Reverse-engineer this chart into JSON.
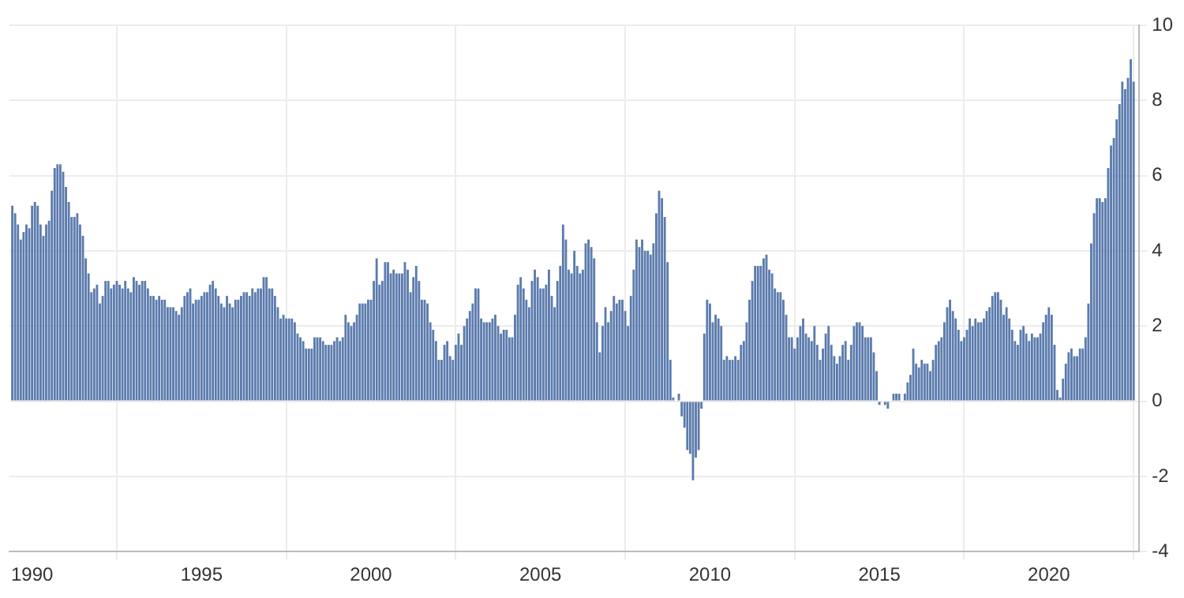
{
  "chart_data": {
    "type": "bar",
    "color": "#5b7bad",
    "grid": true,
    "legend": false,
    "ylim": [
      -4,
      10
    ],
    "yticks": [
      -4,
      -2,
      0,
      2,
      4,
      6,
      8,
      10
    ],
    "xlim": [
      "1989-05",
      "2022-09"
    ],
    "xticks": [
      "1990",
      "1995",
      "2000",
      "2005",
      "2010",
      "2015",
      "2020"
    ],
    "x": [
      "1989-06",
      "1989-07",
      "1989-08",
      "1989-09",
      "1989-10",
      "1989-11",
      "1989-12",
      "1990-01",
      "1990-02",
      "1990-03",
      "1990-04",
      "1990-05",
      "1990-06",
      "1990-07",
      "1990-08",
      "1990-09",
      "1990-10",
      "1990-11",
      "1990-12",
      "1991-01",
      "1991-02",
      "1991-03",
      "1991-04",
      "1991-05",
      "1991-06",
      "1991-07",
      "1991-08",
      "1991-09",
      "1991-10",
      "1991-11",
      "1991-12",
      "1992-01",
      "1992-02",
      "1992-03",
      "1992-04",
      "1992-05",
      "1992-06",
      "1992-07",
      "1992-08",
      "1992-09",
      "1992-10",
      "1992-11",
      "1992-12",
      "1993-01",
      "1993-02",
      "1993-03",
      "1993-04",
      "1993-05",
      "1993-06",
      "1993-07",
      "1993-08",
      "1993-09",
      "1993-10",
      "1993-11",
      "1993-12",
      "1994-01",
      "1994-02",
      "1994-03",
      "1994-04",
      "1994-05",
      "1994-06",
      "1994-07",
      "1994-08",
      "1994-09",
      "1994-10",
      "1994-11",
      "1994-12",
      "1995-01",
      "1995-02",
      "1995-03",
      "1995-04",
      "1995-05",
      "1995-06",
      "1995-07",
      "1995-08",
      "1995-09",
      "1995-10",
      "1995-11",
      "1995-12",
      "1996-01",
      "1996-02",
      "1996-03",
      "1996-04",
      "1996-05",
      "1996-06",
      "1996-07",
      "1996-08",
      "1996-09",
      "1996-10",
      "1996-11",
      "1996-12",
      "1997-01",
      "1997-02",
      "1997-03",
      "1997-04",
      "1997-05",
      "1997-06",
      "1997-07",
      "1997-08",
      "1997-09",
      "1997-10",
      "1997-11",
      "1997-12",
      "1998-01",
      "1998-02",
      "1998-03",
      "1998-04",
      "1998-05",
      "1998-06",
      "1998-07",
      "1998-08",
      "1998-09",
      "1998-10",
      "1998-11",
      "1998-12",
      "1999-01",
      "1999-02",
      "1999-03",
      "1999-04",
      "1999-05",
      "1999-06",
      "1999-07",
      "1999-08",
      "1999-09",
      "1999-10",
      "1999-11",
      "1999-12",
      "2000-01",
      "2000-02",
      "2000-03",
      "2000-04",
      "2000-05",
      "2000-06",
      "2000-07",
      "2000-08",
      "2000-09",
      "2000-10",
      "2000-11",
      "2000-12",
      "2001-01",
      "2001-02",
      "2001-03",
      "2001-04",
      "2001-05",
      "2001-06",
      "2001-07",
      "2001-08",
      "2001-09",
      "2001-10",
      "2001-11",
      "2001-12",
      "2002-01",
      "2002-02",
      "2002-03",
      "2002-04",
      "2002-05",
      "2002-06",
      "2002-07",
      "2002-08",
      "2002-09",
      "2002-10",
      "2002-11",
      "2002-12",
      "2003-01",
      "2003-02",
      "2003-03",
      "2003-04",
      "2003-05",
      "2003-06",
      "2003-07",
      "2003-08",
      "2003-09",
      "2003-10",
      "2003-11",
      "2003-12",
      "2004-01",
      "2004-02",
      "2004-03",
      "2004-04",
      "2004-05",
      "2004-06",
      "2004-07",
      "2004-08",
      "2004-09",
      "2004-10",
      "2004-11",
      "2004-12",
      "2005-01",
      "2005-02",
      "2005-03",
      "2005-04",
      "2005-05",
      "2005-06",
      "2005-07",
      "2005-08",
      "2005-09",
      "2005-10",
      "2005-11",
      "2005-12",
      "2006-01",
      "2006-02",
      "2006-03",
      "2006-04",
      "2006-05",
      "2006-06",
      "2006-07",
      "2006-08",
      "2006-09",
      "2006-10",
      "2006-11",
      "2006-12",
      "2007-01",
      "2007-02",
      "2007-03",
      "2007-04",
      "2007-05",
      "2007-06",
      "2007-07",
      "2007-08",
      "2007-09",
      "2007-10",
      "2007-11",
      "2007-12",
      "2008-01",
      "2008-02",
      "2008-03",
      "2008-04",
      "2008-05",
      "2008-06",
      "2008-07",
      "2008-08",
      "2008-09",
      "2008-10",
      "2008-11",
      "2008-12",
      "2009-01",
      "2009-02",
      "2009-03",
      "2009-04",
      "2009-05",
      "2009-06",
      "2009-07",
      "2009-08",
      "2009-09",
      "2009-10",
      "2009-11",
      "2009-12",
      "2010-01",
      "2010-02",
      "2010-03",
      "2010-04",
      "2010-05",
      "2010-06",
      "2010-07",
      "2010-08",
      "2010-09",
      "2010-10",
      "2010-11",
      "2010-12",
      "2011-01",
      "2011-02",
      "2011-03",
      "2011-04",
      "2011-05",
      "2011-06",
      "2011-07",
      "2011-08",
      "2011-09",
      "2011-10",
      "2011-11",
      "2011-12",
      "2012-01",
      "2012-02",
      "2012-03",
      "2012-04",
      "2012-05",
      "2012-06",
      "2012-07",
      "2012-08",
      "2012-09",
      "2012-10",
      "2012-11",
      "2012-12",
      "2013-01",
      "2013-02",
      "2013-03",
      "2013-04",
      "2013-05",
      "2013-06",
      "2013-07",
      "2013-08",
      "2013-09",
      "2013-10",
      "2013-11",
      "2013-12",
      "2014-01",
      "2014-02",
      "2014-03",
      "2014-04",
      "2014-05",
      "2014-06",
      "2014-07",
      "2014-08",
      "2014-09",
      "2014-10",
      "2014-11",
      "2014-12",
      "2015-01",
      "2015-02",
      "2015-03",
      "2015-04",
      "2015-05",
      "2015-06",
      "2015-07",
      "2015-08",
      "2015-09",
      "2015-10",
      "2015-11",
      "2015-12",
      "2016-01",
      "2016-02",
      "2016-03",
      "2016-04",
      "2016-05",
      "2016-06",
      "2016-07",
      "2016-08",
      "2016-09",
      "2016-10",
      "2016-11",
      "2016-12",
      "2017-01",
      "2017-02",
      "2017-03",
      "2017-04",
      "2017-05",
      "2017-06",
      "2017-07",
      "2017-08",
      "2017-09",
      "2017-10",
      "2017-11",
      "2017-12",
      "2018-01",
      "2018-02",
      "2018-03",
      "2018-04",
      "2018-05",
      "2018-06",
      "2018-07",
      "2018-08",
      "2018-09",
      "2018-10",
      "2018-11",
      "2018-12",
      "2019-01",
      "2019-02",
      "2019-03",
      "2019-04",
      "2019-05",
      "2019-06",
      "2019-07",
      "2019-08",
      "2019-09",
      "2019-10",
      "2019-11",
      "2019-12",
      "2020-01",
      "2020-02",
      "2020-03",
      "2020-04",
      "2020-05",
      "2020-06",
      "2020-07",
      "2020-08",
      "2020-09",
      "2020-10",
      "2020-11",
      "2020-12",
      "2021-01",
      "2021-02",
      "2021-03",
      "2021-04",
      "2021-05",
      "2021-06",
      "2021-07",
      "2021-08",
      "2021-09",
      "2021-10",
      "2021-11",
      "2021-12",
      "2022-01",
      "2022-02",
      "2022-03",
      "2022-04",
      "2022-05",
      "2022-06",
      "2022-07"
    ],
    "values": [
      5.2,
      5.0,
      4.7,
      4.3,
      4.5,
      4.7,
      4.6,
      5.2,
      5.3,
      5.2,
      4.7,
      4.4,
      4.7,
      4.8,
      5.6,
      6.2,
      6.3,
      6.3,
      6.1,
      5.7,
      5.3,
      4.9,
      4.9,
      5.0,
      4.7,
      4.4,
      3.8,
      3.4,
      2.9,
      3.0,
      3.1,
      2.6,
      2.8,
      3.2,
      3.2,
      3.0,
      3.1,
      3.2,
      3.1,
      3.0,
      3.2,
      3.0,
      2.9,
      3.3,
      3.2,
      3.1,
      3.2,
      3.2,
      3.0,
      2.8,
      2.8,
      2.7,
      2.8,
      2.7,
      2.7,
      2.5,
      2.5,
      2.5,
      2.4,
      2.3,
      2.5,
      2.8,
      2.9,
      3.0,
      2.6,
      2.7,
      2.7,
      2.8,
      2.9,
      2.9,
      3.1,
      3.2,
      3.0,
      2.8,
      2.6,
      2.5,
      2.8,
      2.6,
      2.5,
      2.7,
      2.7,
      2.8,
      2.9,
      2.9,
      2.8,
      3.0,
      2.9,
      3.0,
      3.0,
      3.3,
      3.3,
      3.0,
      3.0,
      2.8,
      2.5,
      2.2,
      2.3,
      2.2,
      2.2,
      2.2,
      2.1,
      1.8,
      1.7,
      1.6,
      1.4,
      1.4,
      1.4,
      1.7,
      1.7,
      1.7,
      1.6,
      1.5,
      1.5,
      1.5,
      1.6,
      1.7,
      1.6,
      1.7,
      2.3,
      2.1,
      2.0,
      2.1,
      2.3,
      2.6,
      2.6,
      2.6,
      2.7,
      2.7,
      3.2,
      3.8,
      3.1,
      3.2,
      3.7,
      3.7,
      3.4,
      3.5,
      3.4,
      3.4,
      3.4,
      3.7,
      3.5,
      2.9,
      3.3,
      3.6,
      3.2,
      2.7,
      2.7,
      2.6,
      2.1,
      1.9,
      1.6,
      1.1,
      1.1,
      1.5,
      1.6,
      1.2,
      1.1,
      1.5,
      1.8,
      1.5,
      2.0,
      2.2,
      2.4,
      2.6,
      3.0,
      3.0,
      2.2,
      2.1,
      2.1,
      2.1,
      2.2,
      2.3,
      2.0,
      1.8,
      1.9,
      1.9,
      1.7,
      1.7,
      2.3,
      3.1,
      3.3,
      3.0,
      2.7,
      2.5,
      3.2,
      3.5,
      3.3,
      3.0,
      3.0,
      3.1,
      3.5,
      2.8,
      2.5,
      3.2,
      3.6,
      4.7,
      4.3,
      3.5,
      3.4,
      4.0,
      3.6,
      3.4,
      3.5,
      4.2,
      4.3,
      4.1,
      3.8,
      2.1,
      1.3,
      2.0,
      2.5,
      2.1,
      2.4,
      2.8,
      2.6,
      2.7,
      2.7,
      2.4,
      2.0,
      2.8,
      3.5,
      4.3,
      4.1,
      4.3,
      4.0,
      4.0,
      3.9,
      4.2,
      5.0,
      5.6,
      5.4,
      4.9,
      3.7,
      1.1,
      0.1,
      0.0,
      0.2,
      -0.4,
      -0.7,
      -1.3,
      -1.4,
      -2.1,
      -1.5,
      -1.3,
      -0.2,
      1.8,
      2.7,
      2.6,
      2.1,
      2.3,
      2.2,
      2.0,
      1.1,
      1.2,
      1.1,
      1.1,
      1.2,
      1.1,
      1.5,
      1.6,
      2.1,
      2.7,
      3.2,
      3.6,
      3.6,
      3.6,
      3.8,
      3.9,
      3.5,
      3.4,
      3.0,
      2.9,
      2.9,
      2.7,
      2.3,
      1.7,
      1.7,
      1.4,
      1.7,
      2.0,
      2.2,
      1.8,
      1.7,
      1.6,
      2.0,
      1.5,
      1.1,
      1.4,
      1.8,
      2.0,
      1.5,
      1.2,
      1.0,
      1.2,
      1.5,
      1.6,
      1.1,
      1.5,
      2.0,
      2.1,
      2.1,
      2.0,
      1.7,
      1.7,
      1.7,
      1.3,
      0.8,
      -0.1,
      0.0,
      -0.1,
      -0.2,
      0.0,
      0.2,
      0.2,
      0.2,
      0.0,
      0.2,
      0.5,
      0.7,
      1.4,
      1.0,
      0.9,
      1.1,
      1.0,
      1.0,
      0.8,
      1.1,
      1.5,
      1.6,
      1.7,
      2.1,
      2.5,
      2.7,
      2.4,
      2.2,
      1.9,
      1.6,
      1.7,
      1.9,
      2.2,
      2.0,
      2.2,
      2.1,
      2.1,
      2.2,
      2.4,
      2.5,
      2.8,
      2.9,
      2.9,
      2.7,
      2.3,
      2.5,
      2.2,
      1.9,
      1.6,
      1.5,
      1.9,
      2.0,
      1.8,
      1.6,
      1.8,
      1.7,
      1.7,
      1.8,
      2.1,
      2.3,
      2.5,
      2.3,
      1.5,
      0.3,
      0.1,
      0.6,
      1.0,
      1.3,
      1.4,
      1.2,
      1.2,
      1.4,
      1.4,
      1.7,
      2.6,
      4.2,
      5.0,
      5.4,
      5.4,
      5.3,
      5.4,
      6.2,
      6.8,
      7.0,
      7.5,
      7.9,
      8.5,
      8.3,
      8.6,
      9.1,
      8.5
    ]
  }
}
